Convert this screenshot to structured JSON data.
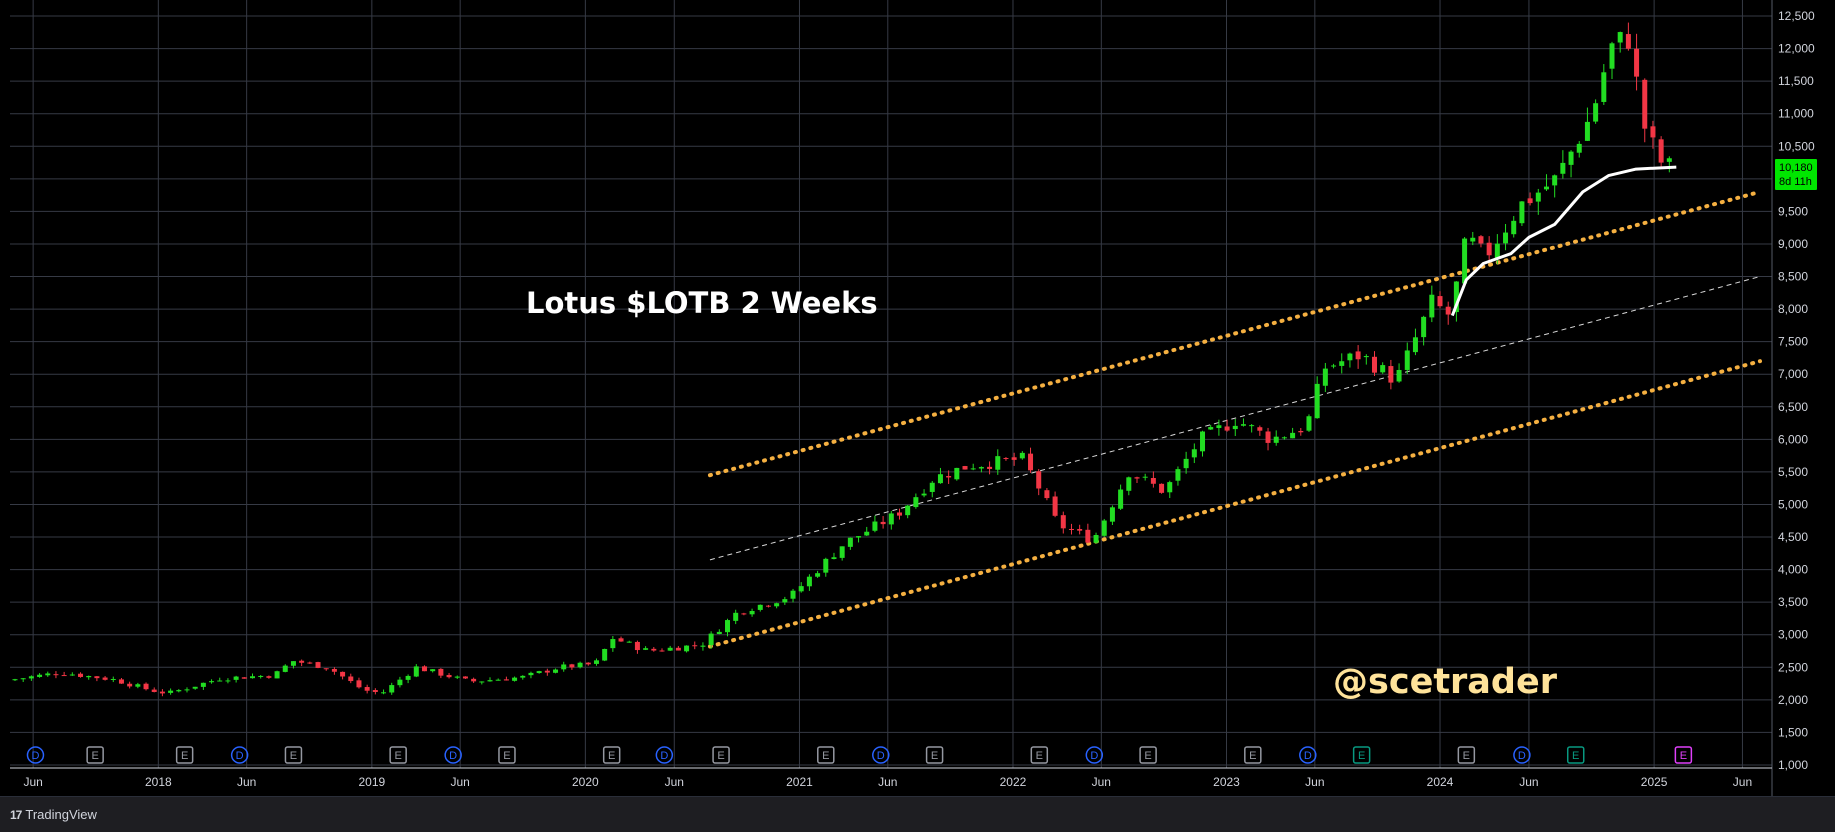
{
  "chart_data": {
    "type": "candlestick",
    "title": "Lotus $LOTB 2 Weeks",
    "watermark": "@scetrader",
    "y_axis": {
      "ylim": [
        1000,
        12700
      ],
      "ticks": [
        1000,
        1500,
        2000,
        2500,
        3000,
        3500,
        4000,
        4500,
        5000,
        5500,
        6000,
        6500,
        7000,
        7500,
        8000,
        8500,
        9000,
        9500,
        10000,
        10500,
        11000,
        11500,
        12000,
        12500
      ],
      "tick_labels": [
        "1,000",
        "1,500",
        "2,000",
        "2,500",
        "3,000",
        "3,500",
        "4,000",
        "4,500",
        "5,000",
        "5,500",
        "6,000",
        "6,500",
        "7,000",
        "7,500",
        "8,000",
        "8,500",
        "9,000",
        "9,500",
        "10,000",
        "10,500",
        "11,000",
        "11,500",
        "12,000",
        "12,500"
      ]
    },
    "x_axis": {
      "xlim": [
        "2017-05-01",
        "2025-07-01"
      ],
      "ticks": [
        {
          "date": "2017-06-01",
          "label": "Jun"
        },
        {
          "date": "2018-01-01",
          "label": "2018"
        },
        {
          "date": "2018-06-01",
          "label": "Jun"
        },
        {
          "date": "2019-01-01",
          "label": "2019"
        },
        {
          "date": "2019-06-01",
          "label": "Jun"
        },
        {
          "date": "2020-01-01",
          "label": "2020"
        },
        {
          "date": "2020-06-01",
          "label": "Jun"
        },
        {
          "date": "2021-01-01",
          "label": "2021"
        },
        {
          "date": "2021-06-01",
          "label": "Jun"
        },
        {
          "date": "2022-01-01",
          "label": "2022"
        },
        {
          "date": "2022-06-01",
          "label": "Jun"
        },
        {
          "date": "2023-01-01",
          "label": "2023"
        },
        {
          "date": "2023-06-01",
          "label": "Jun"
        },
        {
          "date": "2024-01-01",
          "label": "2024"
        },
        {
          "date": "2024-06-01",
          "label": "Jun"
        },
        {
          "date": "2025-01-01",
          "label": "2025"
        },
        {
          "date": "2025-06-01",
          "label": "Jun"
        }
      ]
    },
    "last_price": {
      "value": 10180,
      "label": "10,180",
      "countdown": "8d 11h"
    },
    "colors": {
      "up": "#22dd22",
      "down": "#f23645",
      "channel": "#f5b041",
      "midline": "#d8d8d8",
      "ma": "#ffffff",
      "grid": "#363a45",
      "badge": "#00e600"
    },
    "price_anchors": [
      [
        "2017-05-01",
        2300
      ],
      [
        "2017-08-01",
        2420
      ],
      [
        "2017-11-01",
        2310
      ],
      [
        "2018-01-01",
        2150
      ],
      [
        "2018-02-01",
        2100
      ],
      [
        "2018-05-01",
        2330
      ],
      [
        "2018-08-01",
        2380
      ],
      [
        "2018-09-01",
        2600
      ],
      [
        "2018-11-01",
        2500
      ],
      [
        "2019-01-01",
        2150
      ],
      [
        "2019-02-01",
        2100
      ],
      [
        "2019-04-01",
        2500
      ],
      [
        "2019-07-01",
        2280
      ],
      [
        "2019-10-01",
        2350
      ],
      [
        "2019-12-01",
        2500
      ],
      [
        "2020-02-01",
        2550
      ],
      [
        "2020-03-01",
        2950
      ],
      [
        "2020-05-01",
        2750
      ],
      [
        "2020-08-01",
        2850
      ],
      [
        "2020-10-01",
        3350
      ],
      [
        "2021-01-01",
        3600
      ],
      [
        "2021-04-01",
        4400
      ],
      [
        "2021-07-01",
        4850
      ],
      [
        "2021-09-01",
        5400
      ],
      [
        "2021-11-01",
        5600
      ],
      [
        "2022-02-01",
        5700
      ],
      [
        "2022-03-01",
        5250
      ],
      [
        "2022-04-01",
        4700
      ],
      [
        "2022-06-01",
        4450
      ],
      [
        "2022-08-01",
        5500
      ],
      [
        "2022-10-01",
        5200
      ],
      [
        "2022-12-01",
        6000
      ],
      [
        "2023-02-01",
        6300
      ],
      [
        "2023-04-01",
        6000
      ],
      [
        "2023-06-01",
        6200
      ],
      [
        "2023-07-01",
        7100
      ],
      [
        "2023-09-01",
        7300
      ],
      [
        "2023-11-01",
        6900
      ],
      [
        "2024-01-01",
        8100
      ],
      [
        "2024-02-01",
        7900
      ],
      [
        "2024-03-01",
        9100
      ],
      [
        "2024-04-01",
        8800
      ],
      [
        "2024-06-01",
        9600
      ],
      [
        "2024-08-01",
        10000
      ],
      [
        "2024-10-01",
        11000
      ],
      [
        "2024-11-01",
        12000
      ],
      [
        "2024-12-01",
        12200
      ],
      [
        "2025-01-01",
        10700
      ],
      [
        "2025-02-01",
        10180
      ]
    ],
    "moving_average": [
      [
        "2024-01-22",
        7900
      ],
      [
        "2024-02-15",
        8450
      ],
      [
        "2024-03-15",
        8700
      ],
      [
        "2024-05-01",
        8850
      ],
      [
        "2024-06-01",
        9100
      ],
      [
        "2024-07-15",
        9300
      ],
      [
        "2024-09-01",
        9800
      ],
      [
        "2024-10-15",
        10050
      ],
      [
        "2024-12-01",
        10150
      ],
      [
        "2025-02-08",
        10180
      ]
    ],
    "channel_upper": [
      [
        "2020-08-01",
        5450
      ],
      [
        "2025-07-01",
        9800
      ]
    ],
    "channel_lower": [
      [
        "2020-08-01",
        2820
      ],
      [
        "2025-07-01",
        7200
      ]
    ],
    "channel_mid": [
      [
        "2020-08-01",
        4150
      ],
      [
        "2025-07-01",
        8500
      ]
    ],
    "event_markers": [
      {
        "date": "2017-06-05",
        "type": "D"
      },
      {
        "date": "2017-09-15",
        "type": "E"
      },
      {
        "date": "2018-02-15",
        "type": "E"
      },
      {
        "date": "2018-05-20",
        "type": "D"
      },
      {
        "date": "2018-08-20",
        "type": "E"
      },
      {
        "date": "2019-02-15",
        "type": "E"
      },
      {
        "date": "2019-05-20",
        "type": "D"
      },
      {
        "date": "2019-08-20",
        "type": "E"
      },
      {
        "date": "2020-02-15",
        "type": "E"
      },
      {
        "date": "2020-05-15",
        "type": "D"
      },
      {
        "date": "2020-08-20",
        "type": "E"
      },
      {
        "date": "2021-02-15",
        "type": "E"
      },
      {
        "date": "2021-05-20",
        "type": "D"
      },
      {
        "date": "2021-08-20",
        "type": "E"
      },
      {
        "date": "2022-02-15",
        "type": "E"
      },
      {
        "date": "2022-05-20",
        "type": "D"
      },
      {
        "date": "2022-08-20",
        "type": "E"
      },
      {
        "date": "2023-02-15",
        "type": "E"
      },
      {
        "date": "2023-05-20",
        "type": "D"
      },
      {
        "date": "2023-08-20",
        "type": "E2"
      },
      {
        "date": "2024-02-15",
        "type": "E"
      },
      {
        "date": "2024-05-20",
        "type": "D"
      },
      {
        "date": "2024-08-20",
        "type": "E2"
      },
      {
        "date": "2025-02-20",
        "type": "E3"
      }
    ]
  },
  "footer": {
    "brand": "TradingView",
    "logo_icon": "tradingview-logo-icon"
  }
}
